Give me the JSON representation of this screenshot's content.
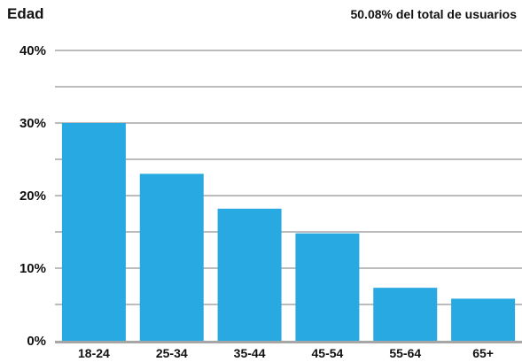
{
  "chart_data": {
    "type": "bar",
    "title": "Edad",
    "subtitle": "50.08% del total de usuarios",
    "xlabel": "",
    "ylabel": "",
    "categories": [
      "18-24",
      "25-34",
      "35-44",
      "45-54",
      "55-64",
      "65+"
    ],
    "values": [
      30,
      23,
      18.2,
      14.8,
      7.3,
      5.8
    ],
    "unit": "%",
    "ylim": [
      0,
      40
    ],
    "yticks": [
      0,
      10,
      20,
      30,
      40
    ],
    "ytick_labels": [
      "0%",
      "10%",
      "20%",
      "30%",
      "40%"
    ],
    "grid": true,
    "legend": "none",
    "colors": {
      "bar": "#29A9E1",
      "grid": "#A6A6A6",
      "baseline": "#A6A6A6"
    }
  }
}
